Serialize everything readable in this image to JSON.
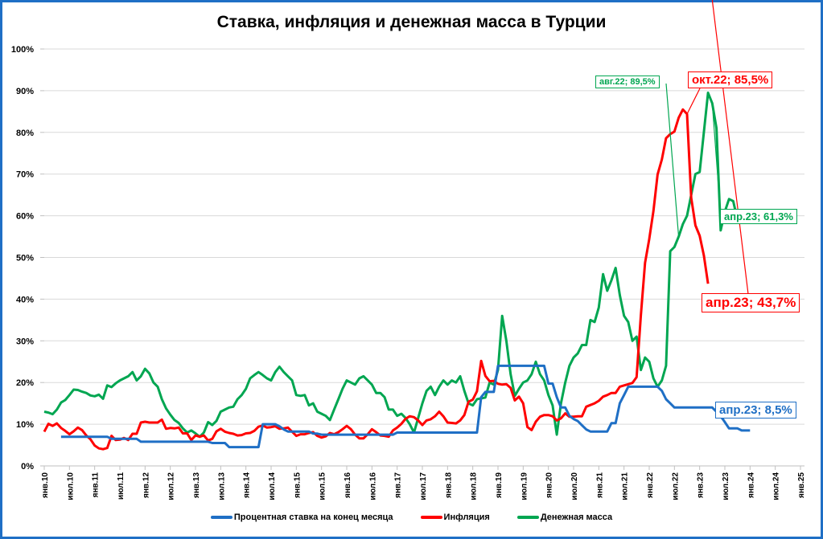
{
  "chart_data": {
    "type": "line",
    "title": "Ставка, инфляция и денежная масса в Турции",
    "xlabel": "",
    "ylabel": "",
    "ylim": [
      0,
      100
    ],
    "y_ticks": [
      "0%",
      "10%",
      "20%",
      "30%",
      "40%",
      "50%",
      "60%",
      "70%",
      "80%",
      "90%",
      "100%"
    ],
    "x_ticks": [
      "янв.10",
      "июл.10",
      "янв.11",
      "июл.11",
      "янв.12",
      "июл.12",
      "янв.13",
      "июл.13",
      "янв.14",
      "июл.14",
      "янв.15",
      "июл.15",
      "янв.16",
      "июл.16",
      "янв.17",
      "июл.17",
      "янв.18",
      "июл.18",
      "янв.19",
      "июл.19",
      "янв.20",
      "июл.20",
      "янв.21",
      "июл.21",
      "янв.22",
      "июл.22",
      "янв.23",
      "июл.23",
      "янв.24",
      "июл.24",
      "янв.25"
    ],
    "grid": true,
    "legend_position": "bottom",
    "x_start": "янв.10",
    "x_step": "month",
    "series": [
      {
        "name": "Процентная ставка на конец месяца",
        "color": "#1f6fc5",
        "start_index": 4,
        "values": [
          7,
          7,
          7,
          7,
          7,
          7,
          7,
          7,
          7,
          7,
          7,
          7,
          6.5,
          6.5,
          6.5,
          6.5,
          6.5,
          6.5,
          6.5,
          5.8,
          5.8,
          5.8,
          5.8,
          5.8,
          5.8,
          5.8,
          5.8,
          5.8,
          5.8,
          5.8,
          5.8,
          5.8,
          5.8,
          5.8,
          5.8,
          5.8,
          5.5,
          5.5,
          5.5,
          5.5,
          4.5,
          4.5,
          4.5,
          4.5,
          4.5,
          4.5,
          4.5,
          4.5,
          10,
          10,
          10,
          10,
          9.5,
          8.75,
          8.25,
          8.25,
          8.25,
          8.25,
          8.25,
          8.25,
          7.75,
          7.75,
          7.5,
          7.5,
          7.5,
          7.5,
          7.5,
          7.5,
          7.5,
          7.5,
          7.5,
          7.5,
          7.5,
          7.5,
          7.5,
          7.5,
          7.5,
          7.5,
          7.5,
          7.5,
          8,
          8,
          8,
          8,
          8,
          8,
          8,
          8,
          8,
          8,
          8,
          8,
          8,
          8,
          8,
          8,
          8,
          8,
          8,
          8,
          16.5,
          17.75,
          17.75,
          17.75,
          24,
          24,
          24,
          24,
          24,
          24,
          24,
          24,
          24,
          24,
          24,
          24,
          19.75,
          19.75,
          16.5,
          14,
          14,
          12,
          11.25,
          10.75,
          9.75,
          8.75,
          8.25,
          8.25,
          8.25,
          8.25,
          8.25,
          10.25,
          10.25,
          15,
          17,
          19,
          19,
          19,
          19,
          19,
          19,
          19,
          19,
          18,
          16,
          15,
          14,
          14,
          14,
          14,
          14,
          14,
          14,
          14,
          14,
          14,
          13,
          12,
          10.5,
          9,
          9,
          9,
          8.5,
          8.5,
          8.5
        ]
      },
      {
        "name": "Инфляция",
        "color": "#ff0000",
        "start_index": 0,
        "values": [
          8.2,
          10.1,
          9.6,
          10.2,
          9.1,
          8.4,
          7.6,
          8.3,
          9.2,
          8.6,
          7.3,
          6.4,
          4.9,
          4.2,
          4,
          4.3,
          7.2,
          6.2,
          6.3,
          6.7,
          6.2,
          7.7,
          7.7,
          10.4,
          10.6,
          10.4,
          10.4,
          10.4,
          11.1,
          8.9,
          9.1,
          9,
          9.2,
          7.8,
          7.8,
          6.2,
          7.3,
          7.0,
          7.3,
          6.1,
          6.5,
          8.3,
          8.9,
          8.2,
          7.9,
          7.7,
          7.3,
          7.4,
          7.8,
          7.9,
          8.4,
          9.4,
          9.7,
          9.2,
          9.3,
          9.5,
          8.9,
          9.0,
          9.2,
          8.2,
          7.2,
          7.6,
          7.6,
          7.9,
          8.1,
          7.2,
          6.8,
          7.1,
          7.9,
          7.6,
          8.1,
          8.8,
          9.6,
          8.8,
          7.5,
          6.6,
          6.6,
          7.6,
          8.8,
          8.1,
          7.3,
          7.2,
          7.0,
          8.5,
          9.2,
          10.1,
          11.3,
          11.9,
          11.7,
          10.9,
          9.8,
          10.9,
          11.2,
          11.9,
          13,
          11.9,
          10.4,
          10.3,
          10.2,
          10.9,
          12.2,
          15.4,
          15.9,
          17.9,
          25.2,
          21.6,
          20.3,
          20.4,
          19.7,
          19.5,
          19.6,
          18.7,
          15.7,
          16.6,
          15,
          9.3,
          8.6,
          10.6,
          11.8,
          12.2,
          12.2,
          11.9,
          10.9,
          11.4,
          12.6,
          11.8,
          11.8,
          11.9,
          11.9,
          14.2,
          14.6,
          15,
          15.6,
          16.6,
          17,
          17.5,
          17.5,
          19,
          19.3,
          19.6,
          19.9,
          21.3,
          36.1,
          48.7,
          54.4,
          61.1,
          69.9,
          73.5,
          78.6,
          79.6,
          80.2,
          83.5,
          85.5,
          84.4,
          64.3,
          57.7,
          55.2,
          50.5,
          43.7
        ]
      },
      {
        "name": "Денежная масса",
        "color": "#00a651",
        "start_index": 0,
        "values": [
          13,
          12.8,
          12.4,
          13.5,
          15.2,
          15.8,
          17,
          18.3,
          18.2,
          17.8,
          17.5,
          16.9,
          16.7,
          17.1,
          16.1,
          19.3,
          18.9,
          19.8,
          20.5,
          21,
          21.5,
          22.5,
          20.5,
          21.5,
          23.3,
          22.2,
          20,
          19,
          16,
          13.8,
          12.3,
          11,
          10.3,
          9,
          8,
          8.5,
          7.8,
          7,
          8,
          10.5,
          9.8,
          10.8,
          13,
          13.5,
          14,
          14.2,
          16,
          17,
          18.5,
          21,
          21.8,
          22.5,
          21.8,
          21,
          20.5,
          22.5,
          23.8,
          22.5,
          21.5,
          20.5,
          17,
          16.8,
          17,
          14.5,
          15,
          13,
          12.5,
          12,
          11,
          13.5,
          16,
          18.5,
          20.5,
          20,
          19.5,
          21,
          21.5,
          20.5,
          19.5,
          17.5,
          17.5,
          16.5,
          13.5,
          13.5,
          12,
          12.5,
          11.5,
          10,
          8,
          11.5,
          15,
          18,
          19,
          17,
          19,
          20.5,
          19.5,
          20.5,
          20,
          21.5,
          18,
          15,
          14.5,
          16,
          16.2,
          16.4,
          20,
          19.5,
          23,
          36,
          30,
          22,
          16.8,
          18.5,
          20,
          20.5,
          22,
          25,
          22,
          20.5,
          17,
          14.5,
          7.5,
          15,
          20,
          24,
          26,
          27,
          29,
          29,
          35,
          34.5,
          38,
          46,
          42,
          44.5,
          47.5,
          41,
          36,
          34.5,
          30,
          31,
          23,
          26,
          25,
          21,
          19,
          20.5,
          24,
          51.5,
          52.5,
          55,
          58,
          60,
          65,
          70,
          70.5,
          80,
          89.5,
          87,
          81,
          56.5,
          61,
          64,
          63.5,
          59,
          61.3
        ]
      }
    ],
    "annotations": [
      {
        "text": "авг.22; 89,5%",
        "series": "Денежная масса",
        "value": 89.5
      },
      {
        "text": "окт.22; 85,5%",
        "series": "Инфляция",
        "value": 85.5
      },
      {
        "text": "апр.23; 61,3%",
        "series": "Денежная масса",
        "value": 61.3
      },
      {
        "text": "апр.23; 43,7%",
        "series": "Инфляция",
        "value": 43.7
      },
      {
        "text": "апр.23; 8,5%",
        "series": "Процентная ставка на конец месяца",
        "value": 8.5
      }
    ]
  },
  "legend": {
    "items": [
      {
        "label": "Процентная ставка на конец месяца",
        "color": "#1f6fc5"
      },
      {
        "label": "Инфляция",
        "color": "#ff0000"
      },
      {
        "label": "Денежная масса",
        "color": "#00a651"
      }
    ]
  }
}
